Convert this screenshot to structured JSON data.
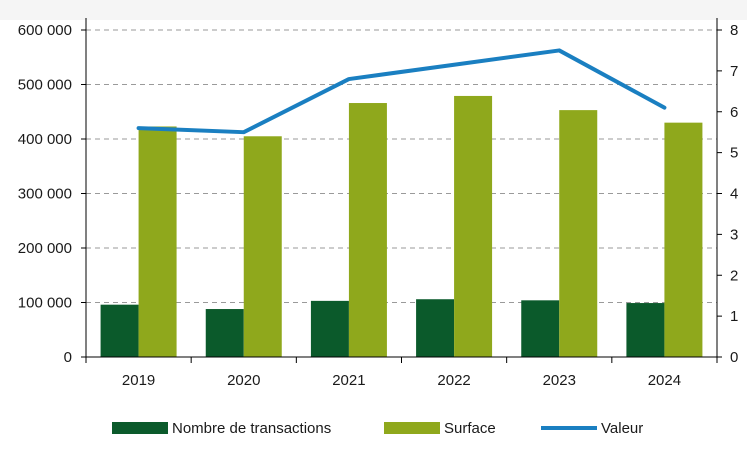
{
  "chart_data": {
    "type": "bar",
    "categories": [
      "2019",
      "2020",
      "2021",
      "2022",
      "2023",
      "2024"
    ],
    "series": [
      {
        "name": "Nombre de transactions",
        "type": "bar",
        "axis": "left",
        "color": "#0b5a2b",
        "values": [
          96000,
          88000,
          103000,
          106000,
          104000,
          99000
        ]
      },
      {
        "name": "Surface",
        "type": "bar",
        "axis": "left",
        "color": "#8fa81c",
        "values": [
          423000,
          405000,
          466000,
          479000,
          453000,
          430000
        ]
      },
      {
        "name": "Valeur",
        "type": "line",
        "axis": "right",
        "color": "#1a7fc1",
        "values": [
          5.6,
          5.5,
          6.8,
          7.15,
          7.5,
          6.1
        ]
      }
    ],
    "ylim_left": [
      0,
      600000
    ],
    "ylim_right": [
      0,
      8
    ],
    "yticks_left": [
      "0",
      "100 000",
      "200 000",
      "300 000",
      "400 000",
      "500 000",
      "600 000"
    ],
    "yticks_right": [
      "0",
      "1",
      "2",
      "3",
      "4",
      "5",
      "6",
      "7",
      "8"
    ],
    "grid": true,
    "legend_position": "bottom"
  }
}
